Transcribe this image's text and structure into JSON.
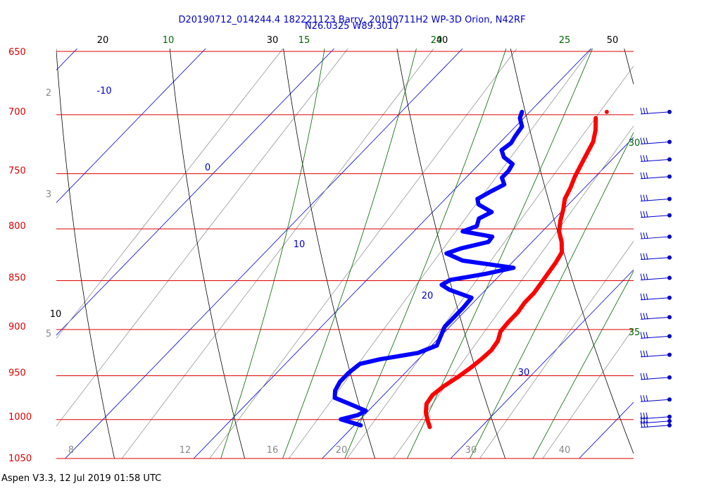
{
  "chart_data": {
    "type": "skew-t",
    "title_line1": "D20190712_014244.4 182221123 Barry, 20190711H2 WP-3D Orion, N42RF",
    "title_line2": "N26.0325 W89.3017",
    "pressure_levels": [
      650,
      700,
      750,
      800,
      850,
      900,
      950,
      1000,
      1050
    ],
    "isotherm_labels": [
      {
        "text": "-10"
      },
      {
        "text": "0"
      },
      {
        "text": "10"
      },
      {
        "text": "20"
      },
      {
        "text": "30"
      }
    ],
    "dry_adiabat_labels": [
      {
        "text": "20"
      },
      {
        "text": "30"
      },
      {
        "text": "40"
      },
      {
        "text": "50"
      },
      {
        "text": "10"
      }
    ],
    "moist_adiabat_labels": [
      {
        "text": "10"
      },
      {
        "text": "15"
      },
      {
        "text": "20"
      },
      {
        "text": "25"
      },
      {
        "text": "30"
      },
      {
        "text": "35"
      }
    ],
    "mixing_ratio_labels": [
      {
        "text": "2"
      },
      {
        "text": "3"
      },
      {
        "text": "5"
      },
      {
        "text": "8"
      },
      {
        "text": "12"
      },
      {
        "text": "16"
      },
      {
        "text": "20"
      },
      {
        "text": "30"
      },
      {
        "text": "40"
      }
    ],
    "temperature_profile": [
      [
        1012,
        26.0
      ],
      [
        1005,
        25.4
      ],
      [
        995,
        24.6
      ],
      [
        985,
        24.0
      ],
      [
        975,
        23.8
      ],
      [
        965,
        24.0
      ],
      [
        955,
        24.4
      ],
      [
        945,
        24.7
      ],
      [
        935,
        24.9
      ],
      [
        925,
        25.0
      ],
      [
        915,
        24.8
      ],
      [
        905,
        24.3
      ],
      [
        895,
        24.2
      ],
      [
        885,
        24.2
      ],
      [
        875,
        24.0
      ],
      [
        865,
        24.0
      ],
      [
        855,
        23.8
      ],
      [
        845,
        23.6
      ],
      [
        835,
        23.4
      ],
      [
        825,
        23.1
      ],
      [
        815,
        22.3
      ],
      [
        805,
        21.3
      ],
      [
        795,
        20.6
      ],
      [
        785,
        20.0
      ],
      [
        775,
        19.3
      ],
      [
        765,
        18.9
      ],
      [
        755,
        18.4
      ],
      [
        745,
        18.0
      ],
      [
        735,
        17.6
      ],
      [
        725,
        17.2
      ],
      [
        715,
        16.5
      ],
      [
        705,
        15.6
      ]
    ],
    "dewpoint_profile": [
      [
        1010,
        20.5
      ],
      [
        1003,
        18.5
      ],
      [
        998,
        19.5
      ],
      [
        993,
        19.8
      ],
      [
        985,
        18.0
      ],
      [
        978,
        16.4
      ],
      [
        970,
        15.9
      ],
      [
        960,
        15.6
      ],
      [
        950,
        15.6
      ],
      [
        940,
        15.8
      ],
      [
        935,
        17.0
      ],
      [
        928,
        19.5
      ],
      [
        920,
        20.4
      ],
      [
        910,
        20.0
      ],
      [
        900,
        19.6
      ],
      [
        890,
        19.6
      ],
      [
        880,
        19.6
      ],
      [
        870,
        19.5
      ],
      [
        862,
        17.2
      ],
      [
        857,
        16.2
      ],
      [
        852,
        16.5
      ],
      [
        846,
        18.8
      ],
      [
        840,
        20.5
      ],
      [
        833,
        16.0
      ],
      [
        826,
        14.2
      ],
      [
        821,
        15.0
      ],
      [
        815,
        16.6
      ],
      [
        810,
        16.5
      ],
      [
        805,
        13.8
      ],
      [
        800,
        14.5
      ],
      [
        793,
        14.1
      ],
      [
        787,
        14.6
      ],
      [
        780,
        13.0
      ],
      [
        775,
        12.5
      ],
      [
        768,
        13.0
      ],
      [
        762,
        13.5
      ],
      [
        756,
        12.8
      ],
      [
        750,
        12.8
      ],
      [
        744,
        12.6
      ],
      [
        738,
        11.4
      ],
      [
        732,
        10.7
      ],
      [
        726,
        10.9
      ],
      [
        720,
        10.7
      ],
      [
        712,
        10.5
      ],
      [
        705,
        9.7
      ],
      [
        700,
        9.4
      ]
    ],
    "top_temp": {
      "p": 700,
      "t": 16.0
    },
    "wind_barb_levels": [
      700,
      725,
      740,
      755,
      775,
      790,
      810,
      830,
      850,
      870,
      890,
      910,
      930,
      955,
      980,
      1000,
      1005,
      1010
    ],
    "footer": "Aspen V3.3, 12 Jul 2019  01:58 UTC"
  },
  "colors": {
    "isobar": "#dd0000",
    "isotherm": "#0000cc",
    "dry_adiabat": "#000000",
    "moist_adiabat": "#006600",
    "mixing_ratio": "#888888",
    "temperature": "#ff0000",
    "dewpoint": "#0000ff",
    "barb": "#0000cc"
  }
}
